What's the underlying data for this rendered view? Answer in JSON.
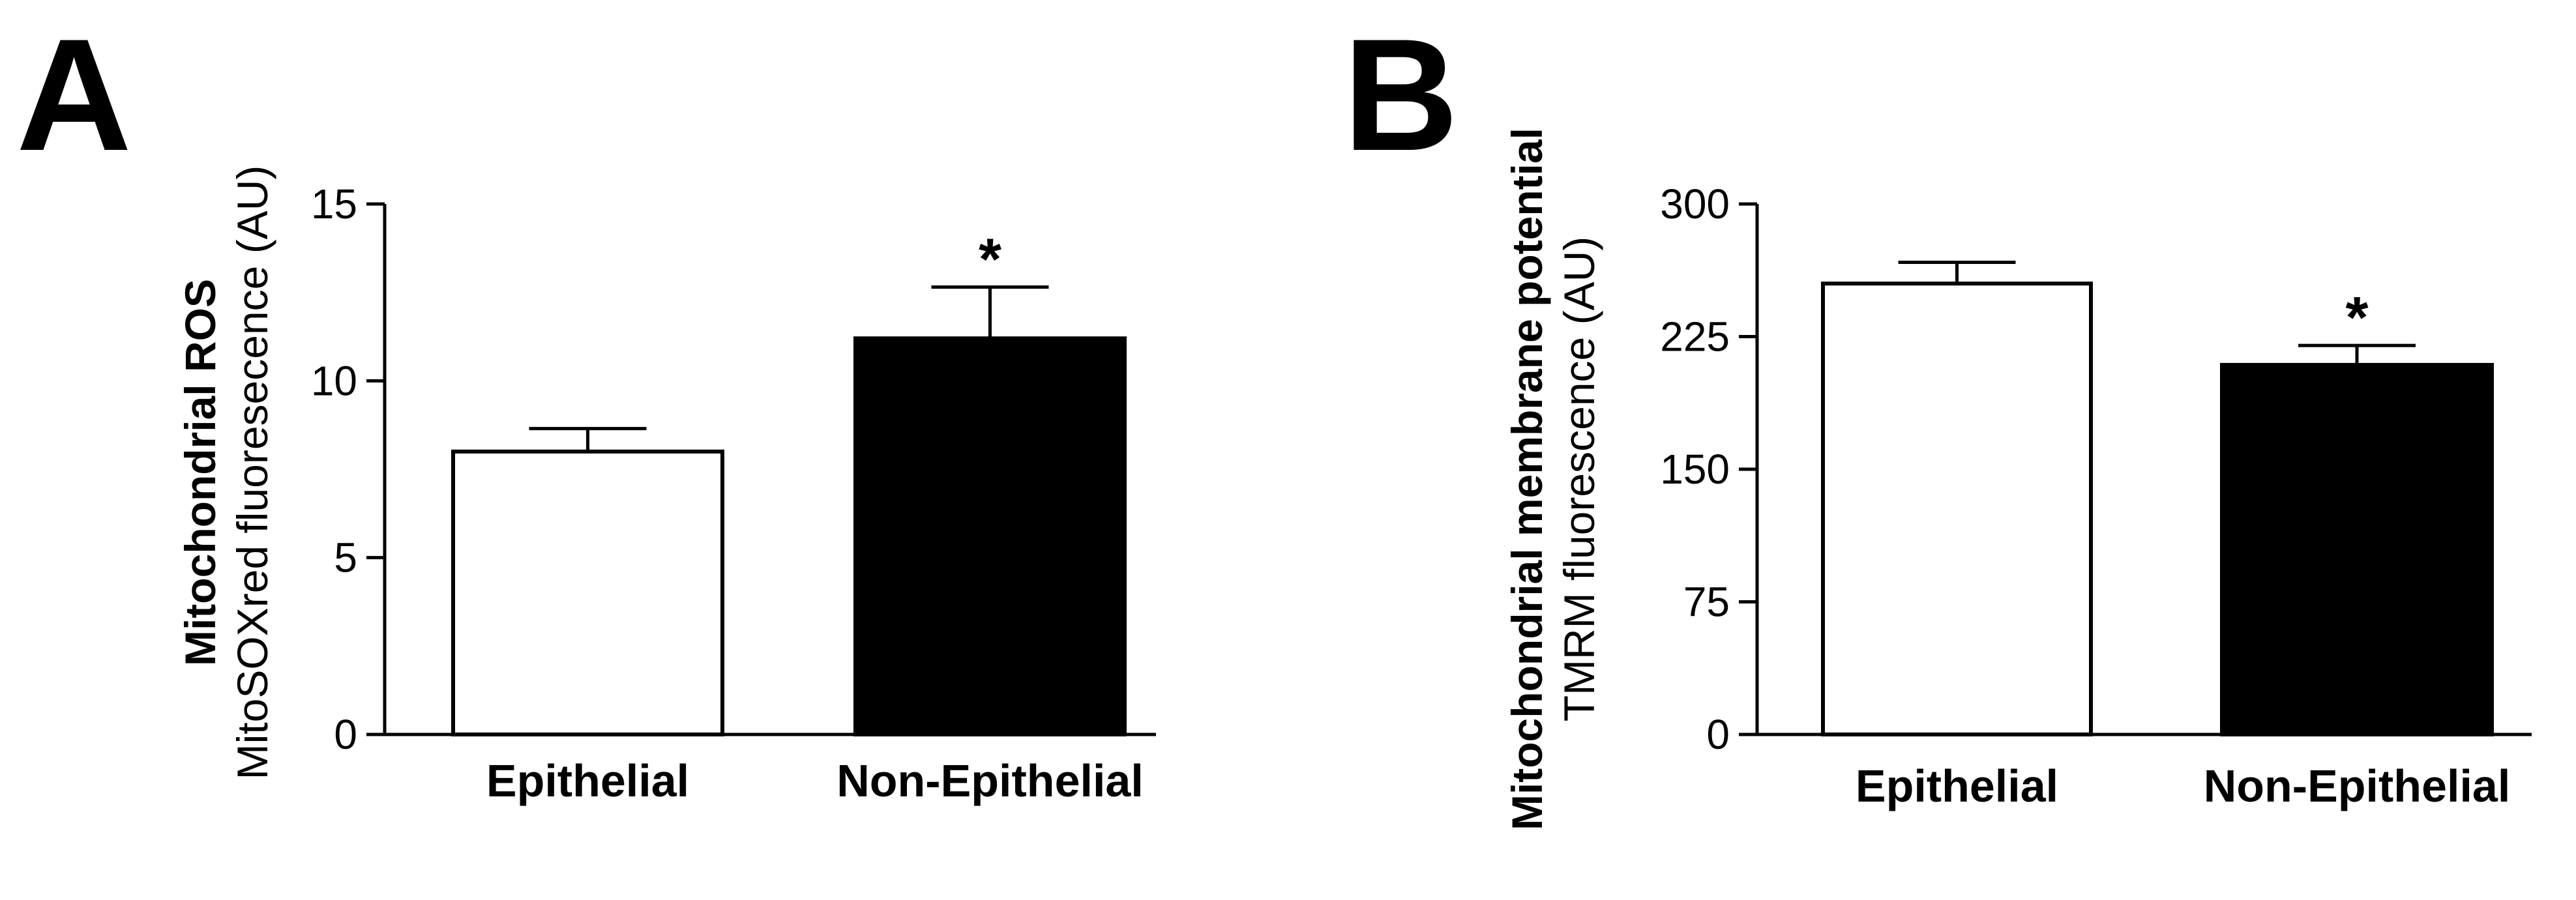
{
  "chart_data": [
    {
      "panel": "A",
      "type": "bar",
      "ylabel": "Mitochondrial ROS",
      "ylabel_sub": "MitoSOXred fluoresecence (AU)",
      "ylim": [
        0,
        15
      ],
      "yticks": [
        "0",
        "5",
        "10",
        "15"
      ],
      "categories": [
        "Epithelial",
        "Non-Epithelial"
      ],
      "values": [
        8.0,
        11.2
      ],
      "errors": [
        0.65,
        1.45
      ],
      "fills": [
        "#ffffff",
        "#000000"
      ],
      "significance": [
        "",
        "*"
      ]
    },
    {
      "panel": "B",
      "type": "bar",
      "ylabel": "Mitochondrial membrane potential",
      "ylabel_sub": "TMRM fluorescence (AU)",
      "ylim": [
        0,
        300
      ],
      "yticks": [
        "0",
        "75",
        "150",
        "225",
        "300"
      ],
      "categories": [
        "Epithelial",
        "Non-Epithelial"
      ],
      "values": [
        255,
        209
      ],
      "errors": [
        12,
        11
      ],
      "fills": [
        "#ffffff",
        "#000000"
      ],
      "significance": [
        "",
        "*"
      ]
    }
  ]
}
